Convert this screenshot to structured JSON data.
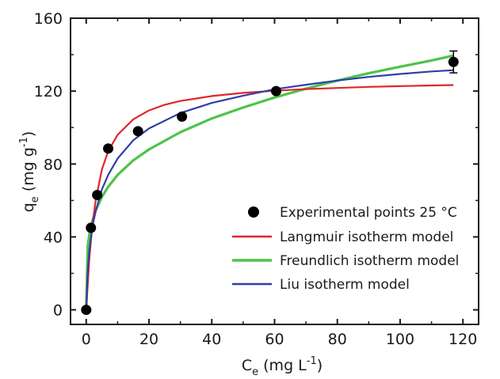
{
  "chart_data": {
    "type": "scatter",
    "xlabel": {
      "main": "C",
      "sub": "e",
      "rest": " (mg L",
      "sup": "-1",
      "end": ")"
    },
    "ylabel": {
      "main": "q",
      "sub": "e",
      "rest": " (mg g",
      "sup": "-1",
      "end": ")"
    },
    "xlim": [
      -5,
      125
    ],
    "ylim": [
      -8,
      160
    ],
    "xticks": [
      0,
      20,
      40,
      60,
      80,
      100,
      120
    ],
    "yticks": [
      0,
      40,
      80,
      120,
      160
    ],
    "grid": false,
    "legend_position": "lower-right",
    "experimental": {
      "name": "Experimental points 25 °C",
      "color": "#000000",
      "points": [
        {
          "x": 0,
          "y": 0
        },
        {
          "x": 1.5,
          "y": 45
        },
        {
          "x": 3.5,
          "y": 63
        },
        {
          "x": 7,
          "y": 88.5
        },
        {
          "x": 16.5,
          "y": 98
        },
        {
          "x": 30.5,
          "y": 106
        },
        {
          "x": 60.5,
          "y": 120
        },
        {
          "x": 117,
          "y": 136,
          "err": 6
        }
      ]
    },
    "series": [
      {
        "name": "Langmuir isotherm model",
        "color": "#e0262b",
        "x": [
          0,
          1,
          2,
          3,
          5,
          7,
          10,
          15,
          20,
          25,
          30,
          40,
          50,
          60,
          70,
          80,
          90,
          100,
          110,
          117
        ],
        "y": [
          0,
          28.5,
          47,
          60,
          77,
          87,
          96,
          104.5,
          109.4,
          112.5,
          114.6,
          117.3,
          119,
          120.2,
          121.1,
          121.7,
          122.3,
          122.7,
          123.1,
          123.3
        ]
      },
      {
        "name": "Freundlich isotherm model",
        "color": "#4cc44a",
        "x": [
          0,
          0.5,
          1,
          2,
          3,
          5,
          7,
          10,
          15,
          20,
          30,
          40,
          50,
          60,
          70,
          80,
          90,
          100,
          110,
          117
        ],
        "y": [
          0,
          35,
          41.5,
          49,
          54.5,
          62,
          67.5,
          74,
          82,
          88,
          97.5,
          105,
          111,
          116.5,
          121.3,
          125.8,
          129.8,
          133.4,
          136.8,
          139.5
        ]
      },
      {
        "name": "Liu isotherm model",
        "color": "#2e3ea8",
        "x": [
          0,
          0.5,
          1,
          2,
          3,
          5,
          7,
          10,
          15,
          20,
          30,
          40,
          50,
          60,
          70,
          80,
          90,
          100,
          110,
          117
        ],
        "y": [
          0,
          22,
          33,
          46,
          54,
          66,
          74,
          83,
          93,
          99.5,
          108,
          113.5,
          117.5,
          121,
          123.5,
          125.8,
          127.8,
          129.4,
          130.8,
          131.5
        ]
      }
    ]
  }
}
